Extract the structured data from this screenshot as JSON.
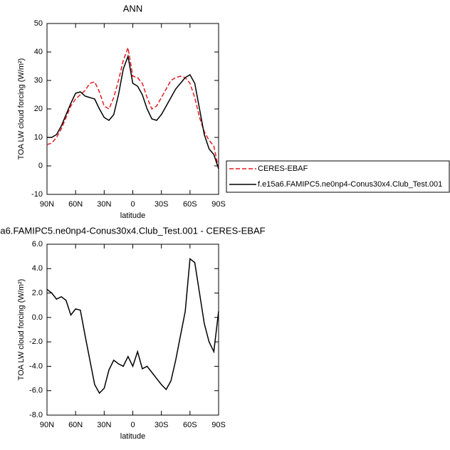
{
  "chart_data": [
    {
      "type": "line",
      "title": "ANN",
      "xlabel": "latitude",
      "ylabel": "TOA LW cloud forcing (W/m²)",
      "x": [
        90,
        85,
        80,
        75,
        70,
        65,
        60,
        55,
        50,
        45,
        40,
        35,
        30,
        25,
        20,
        15,
        10,
        5,
        0,
        -5,
        -10,
        -15,
        -20,
        -25,
        -30,
        -35,
        -40,
        -45,
        -50,
        -55,
        -60,
        -65,
        -70,
        -75,
        -80,
        -85,
        -90
      ],
      "series": [
        {
          "name": "CERES-EBAF",
          "color": "#e8191e",
          "style": "dashed",
          "values": [
            7.5,
            8,
            10,
            13,
            17,
            21,
            23.5,
            25,
            26.5,
            29,
            29.5,
            26,
            21,
            20,
            24,
            30,
            37,
            41.5,
            31.5,
            31,
            29,
            24,
            20,
            21,
            24,
            27,
            30,
            31,
            31.5,
            31,
            29,
            24,
            17,
            12,
            9,
            7,
            -1
          ]
        },
        {
          "name": "f.e15a6.FAMIPC5.ne0np4-Conus30x4.Club_Test.001",
          "color": "#000000",
          "style": "solid",
          "values": [
            10,
            10,
            11,
            14,
            18,
            22,
            25.5,
            26,
            24.5,
            24,
            23.5,
            20,
            17,
            16,
            18,
            25,
            34,
            38.5,
            29,
            28,
            25,
            20,
            16.5,
            16,
            18,
            21,
            24,
            27,
            29,
            31,
            32,
            29,
            20,
            11,
            6,
            4,
            -1
          ]
        }
      ],
      "xlim": [
        90,
        -90
      ],
      "xticks": [
        {
          "value": 90,
          "label": "90N"
        },
        {
          "value": 60,
          "label": "60N"
        },
        {
          "value": 30,
          "label": "30N"
        },
        0,
        {
          "value": -30,
          "label": "30S"
        },
        {
          "value": -60,
          "label": "60S"
        },
        {
          "value": -90,
          "label": "90S"
        }
      ],
      "ylim": [
        -10,
        50
      ],
      "yticks": [
        -10,
        0,
        10,
        20,
        30,
        40,
        50
      ],
      "legend": "right"
    },
    {
      "type": "line",
      "title": "a6.FAMIPC5.ne0np4-Conus30x4.Club_Test.001 - CERES-EBAF",
      "xlabel": "latitude",
      "ylabel": "TOA LW cloud forcing (W/m²)",
      "x": [
        90,
        85,
        80,
        75,
        70,
        65,
        60,
        55,
        50,
        45,
        40,
        35,
        30,
        25,
        20,
        15,
        10,
        5,
        0,
        -5,
        -10,
        -15,
        -20,
        -25,
        -30,
        -35,
        -40,
        -45,
        -50,
        -55,
        -60,
        -65,
        -70,
        -75,
        -80,
        -85,
        -90
      ],
      "series": [
        {
          "color": "#000000",
          "style": "solid",
          "values": [
            2.3,
            2.0,
            1.5,
            1.7,
            1.4,
            0.2,
            0.7,
            0.6,
            -1.5,
            -3.5,
            -5.5,
            -6.2,
            -5.8,
            -4.3,
            -3.5,
            -3.8,
            -4.0,
            -3.2,
            -4.0,
            -2.8,
            -4.2,
            -4.0,
            -4.5,
            -5.0,
            -5.5,
            -5.9,
            -5.2,
            -3.5,
            -1.5,
            0.5,
            4.8,
            4.5,
            2.0,
            -0.5,
            -2.0,
            -2.8,
            0.5
          ]
        }
      ],
      "xlim": [
        90,
        -90
      ],
      "xticks": [
        {
          "value": 90,
          "label": "90N"
        },
        {
          "value": 60,
          "label": "60N"
        },
        {
          "value": 30,
          "label": "30N"
        },
        0,
        {
          "value": -30,
          "label": "30S"
        },
        {
          "value": -60,
          "label": "60S"
        },
        {
          "value": -90,
          "label": "90S"
        }
      ],
      "ylim": [
        -8,
        6
      ],
      "yticks": [
        {
          "value": -8,
          "label": "-8.0"
        },
        {
          "value": -6,
          "label": "-6.0"
        },
        {
          "value": -4,
          "label": "-4.0"
        },
        {
          "value": -2,
          "label": "-2.0"
        },
        {
          "value": 0,
          "label": "0.0"
        },
        {
          "value": 2,
          "label": "2.0"
        },
        {
          "value": 4,
          "label": "4.0"
        },
        {
          "value": 6,
          "label": "6.0"
        }
      ]
    }
  ]
}
